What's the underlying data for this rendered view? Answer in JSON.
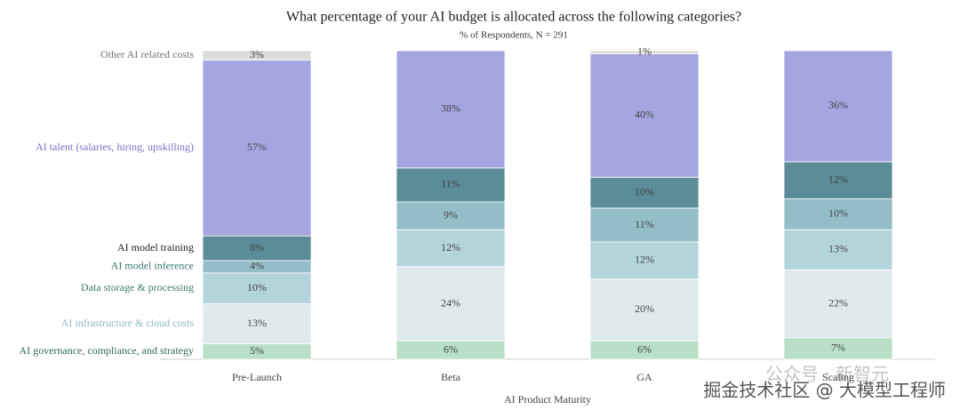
{
  "chart_data": {
    "type": "stacked_bar",
    "title": "What percentage of your AI budget is allocated across the following categories?",
    "subtitle": "% of Respondents, N = 291",
    "x_label": "AI Product Maturity",
    "categories": [
      "Pre-Launch",
      "Beta",
      "GA",
      "Scaling"
    ],
    "ylim": [
      0,
      100
    ],
    "series": [
      {
        "name": "AI governance, compliance, and strategy",
        "color": "#b9e0c6",
        "label_color": "#2f6b4a",
        "values": [
          5,
          6,
          6,
          7
        ],
        "value_labels": [
          "5%",
          "6%",
          "6%",
          "7%"
        ]
      },
      {
        "name": "AI infrastructure & cloud costs",
        "color": "#dfeaed",
        "label_color": "#8fb8c4",
        "values": [
          13,
          24,
          20,
          22
        ],
        "value_labels": [
          "13%",
          "24%",
          "20%",
          "22%"
        ]
      },
      {
        "name": "Data storage & processing",
        "color": "#b4d4dc",
        "label_color": "#3d7a72",
        "values": [
          10,
          12,
          12,
          13
        ],
        "value_labels": [
          "10%",
          "12%",
          "12%",
          "13%"
        ]
      },
      {
        "name": "AI model inference",
        "color": "#93bec8",
        "label_color": "#3d7a72",
        "values": [
          4,
          9,
          11,
          10
        ],
        "value_labels": [
          "4%",
          "9%",
          "11%",
          "10%"
        ]
      },
      {
        "name": "AI model training",
        "color": "#5b8c97",
        "label_color": "#222222",
        "values": [
          8,
          11,
          10,
          12
        ],
        "value_labels": [
          "8%",
          "11%",
          "10%",
          "12%"
        ]
      },
      {
        "name": "AI talent (salaries, hiring, upskilling)",
        "color": "#a5a5e1",
        "label_color": "#7b72c8",
        "values": [
          57,
          38,
          40,
          36
        ],
        "value_labels": [
          "57%",
          "38%",
          "40%",
          "36%"
        ]
      },
      {
        "name": "Other AI related costs",
        "color": "#dcdcdc",
        "label_color": "#777777",
        "values": [
          3,
          null,
          1,
          null
        ],
        "value_labels": [
          "3%",
          null,
          "1%",
          null
        ]
      }
    ]
  },
  "watermark": [
    "公众号 · 新智元",
    "掘金技术社区 @ 大模型工程师"
  ]
}
